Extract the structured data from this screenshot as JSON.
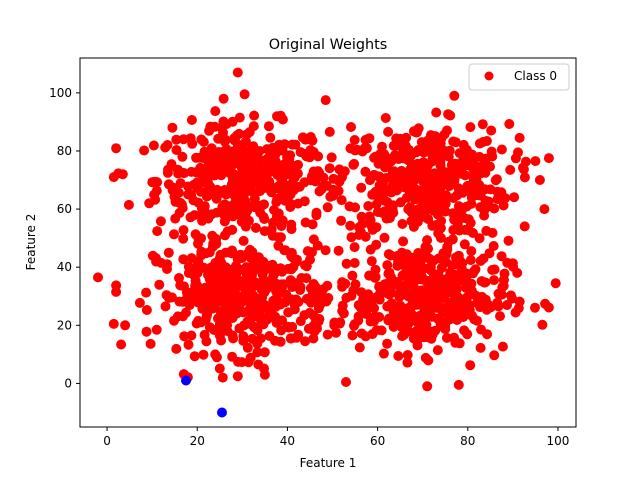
{
  "chart_data": {
    "type": "scatter",
    "title": "Original Weights",
    "xlabel": "Feature 1",
    "ylabel": "Feature 2",
    "xlim": [
      -6,
      104
    ],
    "ylim": [
      -15,
      112
    ],
    "xticks": [
      0,
      20,
      40,
      60,
      80,
      100
    ],
    "yticks": [
      0,
      20,
      40,
      60,
      80,
      100
    ],
    "grid": false,
    "legend": {
      "placement": "top-right",
      "entries": [
        "Class 0"
      ]
    },
    "series": [
      {
        "name": "Class 0",
        "color": "#ff0000",
        "clusters": [
          {
            "center": [
              30,
              70
            ],
            "spread": 10,
            "count": 420
          },
          {
            "center": [
              70,
              70
            ],
            "spread": 10,
            "count": 420
          },
          {
            "center": [
              30,
              30
            ],
            "spread": 10,
            "count": 420
          },
          {
            "center": [
              70,
              30
            ],
            "spread": 10,
            "count": 420
          }
        ],
        "points": [
          [
            -2,
            36.5
          ],
          [
            29,
            107
          ],
          [
            30.5,
            99.5
          ],
          [
            48.5,
            97.5
          ],
          [
            77,
            99
          ],
          [
            78,
            -0.5
          ],
          [
            71,
            -1
          ],
          [
            53,
            0.5
          ],
          [
            99.5,
            34.5
          ],
          [
            97,
            60
          ],
          [
            96,
            70
          ],
          [
            95,
            76.5
          ],
          [
            1.5,
            71
          ],
          [
            3.5,
            72
          ],
          [
            1.5,
            20.5
          ],
          [
            4,
            20
          ],
          [
            14.5,
            88
          ],
          [
            91.5,
            84.5
          ],
          [
            29,
            2.5
          ],
          [
            35,
            3
          ]
        ]
      },
      {
        "name": "",
        "color": "#0000ff",
        "points": [
          [
            17.5,
            1
          ],
          [
            25.5,
            -10
          ]
        ]
      }
    ]
  }
}
